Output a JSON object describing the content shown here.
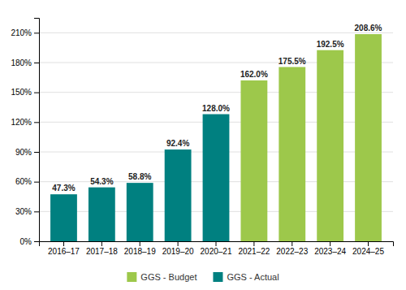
{
  "chart_data": {
    "type": "bar",
    "categories": [
      "2016–17",
      "2017–18",
      "2018–19",
      "2019–20",
      "2020–21",
      "2021–22",
      "2022–23",
      "2023–24",
      "2024–25"
    ],
    "series": [
      {
        "name": "GGS - Actual",
        "color": "#008080",
        "values": [
          47.3,
          54.3,
          58.8,
          92.4,
          128.0,
          null,
          null,
          null,
          null
        ],
        "value_labels": [
          "47.3%",
          "54.3%",
          "58.8%",
          "92.4%",
          "128.0%",
          null,
          null,
          null,
          null
        ]
      },
      {
        "name": "GGS - Budget",
        "color": "#9dc84b",
        "values": [
          null,
          null,
          null,
          null,
          null,
          162.0,
          175.5,
          192.5,
          208.6
        ],
        "value_labels": [
          null,
          null,
          null,
          null,
          null,
          "162.0%",
          "175.5%",
          "192.5%",
          "208.6%"
        ]
      }
    ],
    "ylim": [
      0,
      225
    ],
    "yticks": [
      {
        "value": 0,
        "label": "0%"
      },
      {
        "value": 30,
        "label": "30%"
      },
      {
        "value": 60,
        "label": "60%"
      },
      {
        "value": 90,
        "label": "90%"
      },
      {
        "value": 120,
        "label": "120%"
      },
      {
        "value": 150,
        "label": "150%"
      },
      {
        "value": 180,
        "label": "180%"
      },
      {
        "value": 210,
        "label": "210%"
      }
    ],
    "grid": true,
    "legend": "bottom",
    "data_labels": true
  }
}
